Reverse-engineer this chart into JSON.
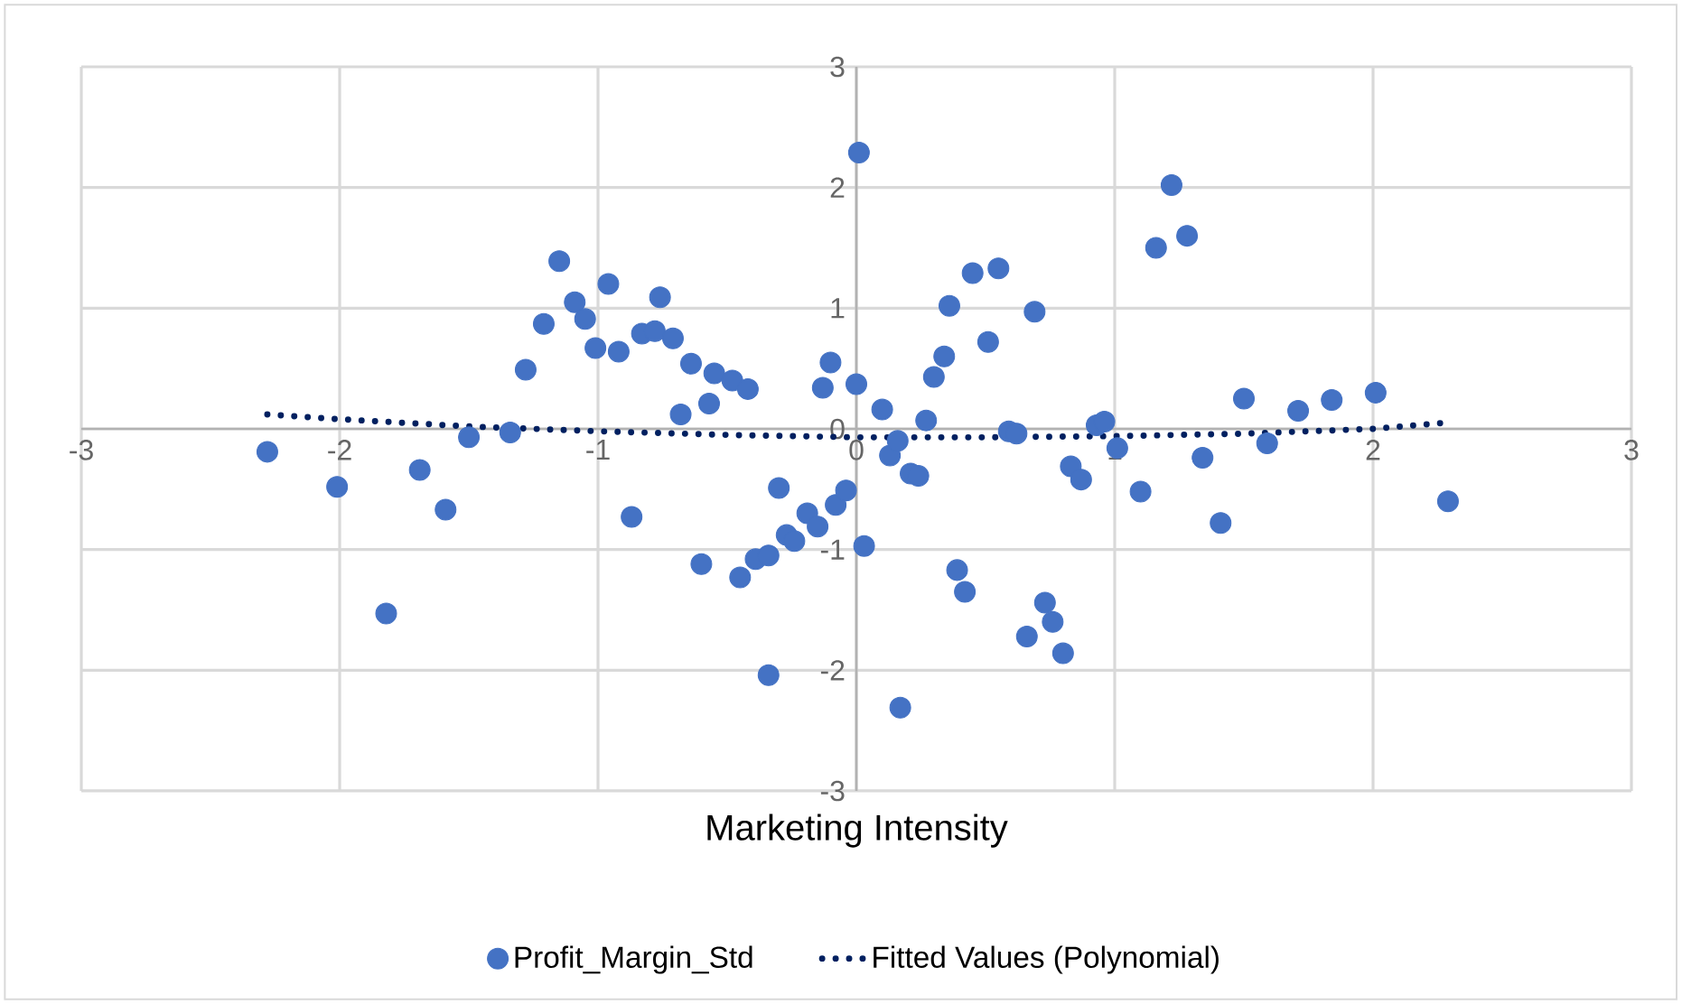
{
  "chart_data": {
    "type": "scatter",
    "xlabel": "Marketing Intensity",
    "xlim": [
      -3,
      3
    ],
    "ylim": [
      -3,
      3
    ],
    "xticks": [
      -3,
      -2,
      -1,
      0,
      1,
      2,
      3
    ],
    "yticks": [
      -3,
      -2,
      -1,
      0,
      1,
      2,
      3
    ],
    "grid": true,
    "legend": "bottom",
    "marker": "circle",
    "series": [
      {
        "name": "Profit_Margin_Std",
        "color": "#4472c4",
        "x": [
          -2.28,
          -2.01,
          -1.69,
          -1.59,
          -1.82,
          -1.5,
          -1.34,
          -1.28,
          -1.21,
          -1.15,
          -1.09,
          -1.05,
          -1.01,
          -0.96,
          -0.92,
          -0.87,
          -0.83,
          -0.78,
          -0.76,
          -0.71,
          -0.68,
          -0.64,
          -0.6,
          -0.57,
          -0.55,
          -0.48,
          -0.42,
          -0.45,
          -0.39,
          -0.34,
          -0.34,
          -0.3,
          -0.27,
          -0.24,
          -0.19,
          -0.15,
          -0.13,
          -0.1,
          -0.08,
          -0.04,
          0.01,
          0.0,
          0.03,
          0.1,
          0.13,
          0.16,
          0.17,
          0.21,
          0.24,
          0.27,
          0.3,
          0.34,
          0.36,
          0.39,
          0.42,
          0.45,
          0.51,
          0.55,
          0.59,
          0.62,
          0.66,
          0.69,
          0.73,
          0.76,
          0.8,
          0.83,
          0.87,
          0.93,
          0.96,
          1.01,
          1.1,
          1.16,
          1.22,
          1.28,
          1.34,
          1.41,
          1.5,
          1.59,
          1.71,
          1.84,
          2.01,
          2.29
        ],
        "values": [
          -0.19,
          -0.48,
          -0.34,
          -0.67,
          -1.53,
          -0.07,
          -0.03,
          0.49,
          0.87,
          1.39,
          1.05,
          0.91,
          0.67,
          1.2,
          0.64,
          -0.73,
          0.79,
          0.81,
          1.09,
          0.75,
          0.12,
          0.54,
          -1.12,
          0.21,
          0.46,
          0.4,
          0.33,
          -1.23,
          -1.08,
          -1.05,
          -2.04,
          -0.49,
          -0.88,
          -0.93,
          -0.7,
          -0.81,
          0.34,
          0.55,
          -0.63,
          -0.51,
          2.29,
          0.37,
          -0.97,
          0.16,
          -0.22,
          -0.1,
          -2.31,
          -0.37,
          -0.39,
          0.07,
          0.43,
          0.6,
          1.02,
          -1.17,
          -1.35,
          1.29,
          0.72,
          1.33,
          -0.02,
          -0.04,
          -1.72,
          0.97,
          -1.44,
          -1.6,
          -1.86,
          -0.31,
          -0.42,
          0.03,
          0.06,
          -0.16,
          -0.52,
          1.5,
          2.02,
          1.6,
          -0.24,
          -0.78,
          0.25,
          -0.12,
          0.15,
          0.24,
          0.3,
          -0.6
        ]
      },
      {
        "name": "Fitted Values (Polynomial)",
        "type": "line",
        "marker": "none",
        "line_style": "dotted",
        "color": "#002060",
        "x": [
          -2.28,
          -2.0,
          -1.5,
          -1.0,
          -0.5,
          0.0,
          0.5,
          1.0,
          1.5,
          2.0,
          2.28
        ],
        "values": [
          0.12,
          0.08,
          0.02,
          -0.02,
          -0.05,
          -0.07,
          -0.07,
          -0.06,
          -0.04,
          0.0,
          0.05
        ]
      }
    ]
  }
}
